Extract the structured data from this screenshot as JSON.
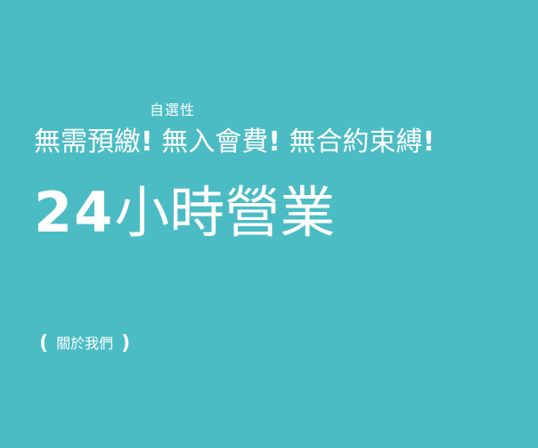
{
  "theme": {
    "background": "#4bbcc4",
    "text": "#ffffff"
  },
  "hero": {
    "annotation": "自選性",
    "tagline": {
      "part1": "無需預繳",
      "part2": "無入會費",
      "part3": "無合約束縛",
      "separator": "!"
    },
    "headline": {
      "number": "24",
      "text": "小時營業"
    },
    "about_link": {
      "open": "(",
      "label": "關於我們",
      "close": ")"
    }
  }
}
